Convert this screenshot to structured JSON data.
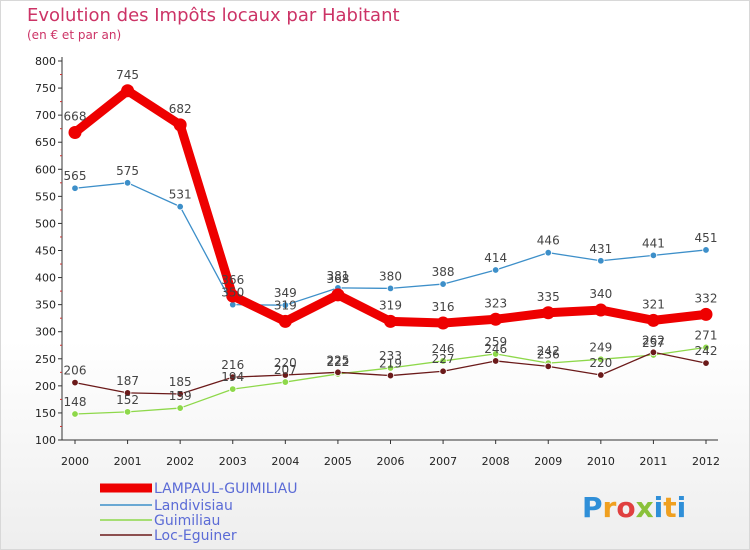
{
  "chart_data": {
    "type": "line",
    "title": "Evolution des Impôts locaux par Habitant",
    "subtitle": "(en € et par an)",
    "x": [
      "2000",
      "2001",
      "2002",
      "2003",
      "2004",
      "2005",
      "2006",
      "2007",
      "2008",
      "2009",
      "2010",
      "2011",
      "2012"
    ],
    "ylim": [
      100,
      800
    ],
    "yticks": [
      100,
      150,
      200,
      250,
      300,
      350,
      400,
      450,
      500,
      550,
      600,
      650,
      700,
      750,
      800
    ],
    "grid": false,
    "legend_position": "bottom-left",
    "series": [
      {
        "name": "LAMPAUL-GUIMILIAU",
        "color": "#ee0000",
        "values": [
          668,
          745,
          682,
          366,
          319,
          368,
          319,
          316,
          323,
          335,
          340,
          321,
          332
        ]
      },
      {
        "name": "Landivisiau",
        "color": "#3d8fc9",
        "values": [
          565,
          575,
          531,
          350,
          349,
          381,
          380,
          388,
          414,
          446,
          431,
          441,
          451
        ]
      },
      {
        "name": "Guimiliau",
        "color": "#8ed84a",
        "values": [
          148,
          152,
          159,
          194,
          207,
          222,
          233,
          246,
          259,
          242,
          249,
          257,
          271
        ]
      },
      {
        "name": "Loc-Eguiner",
        "color": "#6b1a1a",
        "values": [
          206,
          187,
          185,
          216,
          220,
          225,
          219,
          227,
          246,
          236,
          220,
          262,
          242
        ]
      }
    ]
  },
  "brand": {
    "letters": [
      "P",
      "r",
      "o",
      "x",
      "i",
      "t",
      "i"
    ],
    "colors": [
      "#2f8fd8",
      "#f0a020",
      "#e04040",
      "#8ac13a",
      "#2f8fd8",
      "#f0a020",
      "#2f8fd8"
    ]
  }
}
